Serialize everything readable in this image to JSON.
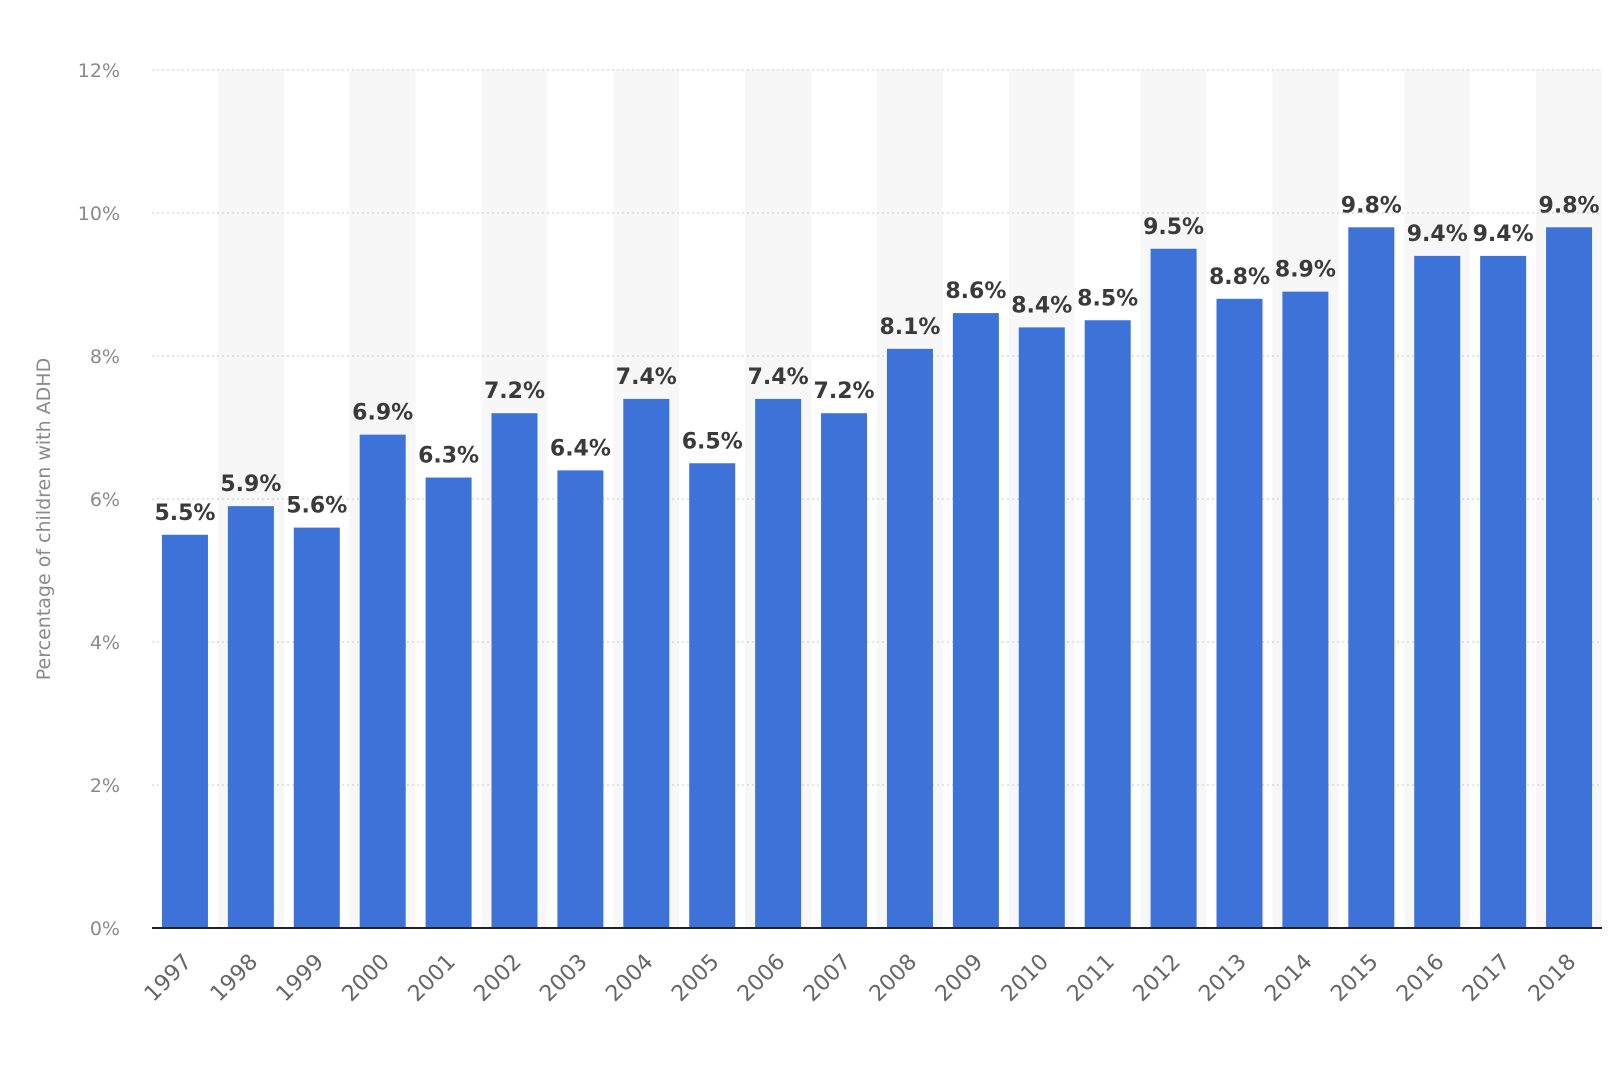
{
  "chart_data": {
    "type": "bar",
    "title": "",
    "xlabel": "",
    "ylabel": "Percentage of children with ADHD",
    "categories": [
      "1997",
      "1998",
      "1999",
      "2000",
      "2001",
      "2002",
      "2003",
      "2004",
      "2005",
      "2006",
      "2007",
      "2008",
      "2009",
      "2010",
      "2011",
      "2012",
      "2013",
      "2014",
      "2015",
      "2016",
      "2017",
      "2018"
    ],
    "values": [
      5.5,
      5.9,
      5.6,
      6.9,
      6.3,
      7.2,
      6.4,
      7.4,
      6.5,
      7.4,
      7.2,
      8.1,
      8.6,
      8.4,
      8.5,
      9.5,
      8.8,
      8.9,
      9.8,
      9.4,
      9.4,
      9.8
    ],
    "data_labels": [
      "5.5%",
      "5.9%",
      "5.6%",
      "6.9%",
      "6.3%",
      "7.2%",
      "6.4%",
      "7.4%",
      "6.5%",
      "7.4%",
      "7.2%",
      "8.1%",
      "8.6%",
      "8.4%",
      "8.5%",
      "9.5%",
      "8.8%",
      "8.9%",
      "9.8%",
      "9.4%",
      "9.4%",
      "9.8%"
    ],
    "ylim": [
      0,
      12
    ],
    "yticks": [
      0,
      2,
      4,
      6,
      8,
      10,
      12
    ],
    "ytick_labels": [
      "0%",
      "2%",
      "4%",
      "6%",
      "8%",
      "10%",
      "12%"
    ],
    "grid": true,
    "colors": {
      "bar": "#3d72d8",
      "band": "#f7f7f7",
      "grid": "#c8c8c8"
    }
  }
}
